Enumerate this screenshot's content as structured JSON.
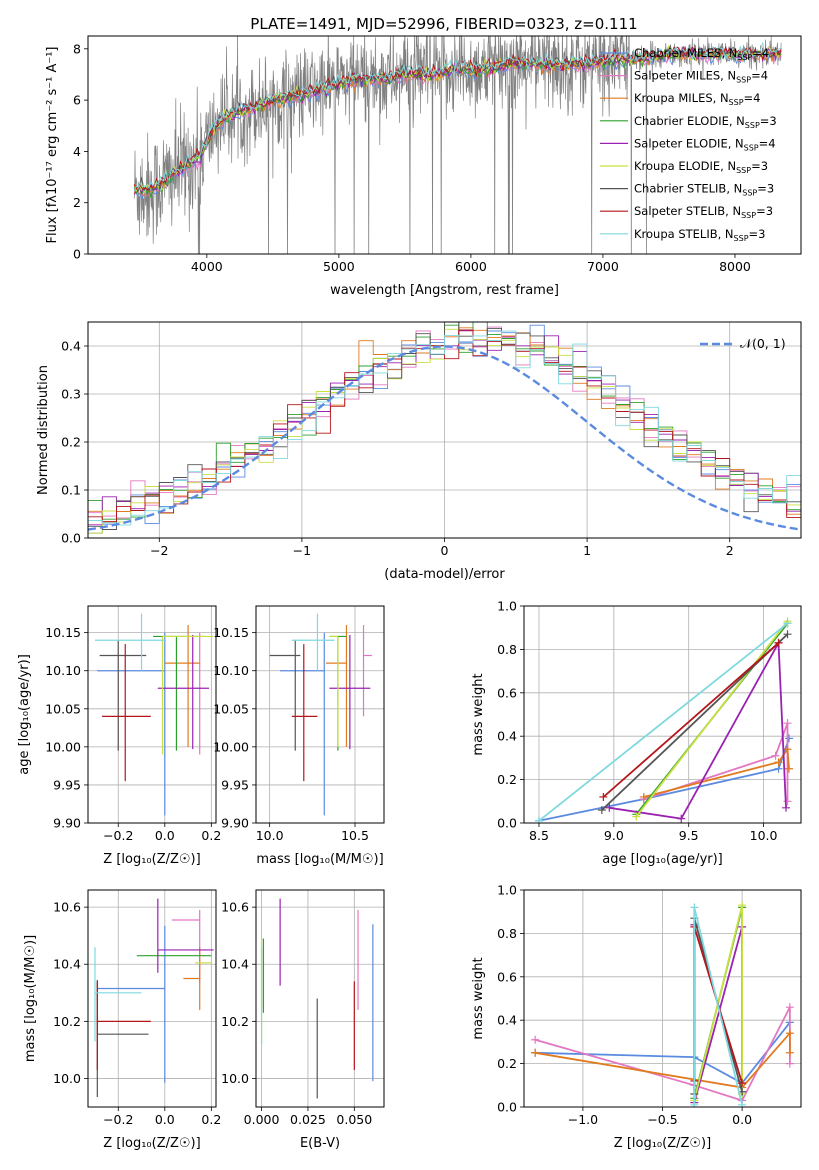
{
  "chart_data": [
    {
      "id": "spectrum",
      "type": "line",
      "title": "PLATE=1491, MJD=52996, FIBERID=0323, z=0.111",
      "xlabel": "wavelength [Angstrom, rest frame]",
      "ylabel": "Flux [fλ10⁻¹⁷ erg cm⁻² s⁻¹ A⁻¹]",
      "xlim": [
        3100,
        8500
      ],
      "ylim": [
        0,
        8.5
      ],
      "xticks": [
        "4000",
        "5000",
        "6000",
        "7000",
        "8000"
      ],
      "yticks": [
        "0",
        "2",
        "4",
        "6",
        "8"
      ],
      "grid": false,
      "legend_position": "right",
      "observed_data": {
        "color": "#808080",
        "x_range": [
          3450,
          8350
        ]
      },
      "continuum_x": [
        3450,
        3550,
        3650,
        3800,
        3950,
        4050,
        4150,
        4300,
        4500,
        4700,
        4900,
        5100,
        5300,
        5500,
        5700,
        5900,
        6100,
        6300,
        6500,
        6700,
        6900,
        7100,
        7300,
        7500,
        7700,
        7900,
        8100,
        8300
      ],
      "continuum_y": [
        2.5,
        2.5,
        2.7,
        3.3,
        3.8,
        4.9,
        5.4,
        5.6,
        6.0,
        6.2,
        6.5,
        6.8,
        6.8,
        7.0,
        7.0,
        7.2,
        7.2,
        7.4,
        7.4,
        7.4,
        7.4,
        7.6,
        7.6,
        7.8,
        7.8,
        7.8,
        7.8,
        7.8
      ],
      "series": [
        {
          "legend": "Chabrier MILES, N",
          "sub": "SSP",
          "suffix": "=4",
          "color": "#5b8be0"
        },
        {
          "legend": "Salpeter MILES, N",
          "sub": "SSP",
          "suffix": "=4",
          "color": "#e377c2"
        },
        {
          "legend": "Kroupa MILES, N",
          "sub": "SSP",
          "suffix": "=4",
          "color": "#e07b20"
        },
        {
          "legend": "Chabrier ELODIE, N",
          "sub": "SSP",
          "suffix": "=3",
          "color": "#2ca02c"
        },
        {
          "legend": "Salpeter ELODIE, N",
          "sub": "SSP",
          "suffix": "=4",
          "color": "#9b22b0"
        },
        {
          "legend": "Kroupa ELODIE, N",
          "sub": "SSP",
          "suffix": "=3",
          "color": "#c9e042"
        },
        {
          "legend": "Chabrier STELIB, N",
          "sub": "SSP",
          "suffix": "=3",
          "color": "#555555"
        },
        {
          "legend": "Salpeter STELIB, N",
          "sub": "SSP",
          "suffix": "=3",
          "color": "#b5161c"
        },
        {
          "legend": "Kroupa STELIB, N",
          "sub": "SSP",
          "suffix": "=3",
          "color": "#7fd9df"
        }
      ]
    },
    {
      "id": "residuals",
      "type": "line",
      "xlabel": "(data-model)/error",
      "ylabel": "Normed distribution",
      "xlim": [
        -2.5,
        2.5
      ],
      "ylim": [
        0,
        0.45
      ],
      "xticks": [
        "−2",
        "−1",
        "0",
        "1",
        "2"
      ],
      "yticks": [
        "0.0",
        "0.1",
        "0.2",
        "0.3",
        "0.4"
      ],
      "grid": true,
      "legend_position": "top-right",
      "gaussian": {
        "label": "𝒩(0, 1)",
        "mean": 0,
        "sigma": 1,
        "color": "#5b8be0"
      },
      "bin_width": 0.1,
      "bin_start": -2.5,
      "bin_count": 50
    },
    {
      "id": "age_vs_Z",
      "type": "scatter",
      "xlabel": "Z [log₁₀(Z/Z☉)]",
      "ylabel": "age [log₁₀(age/yr)]",
      "xlim": [
        -0.33,
        0.22
      ],
      "ylim": [
        9.9,
        10.185
      ],
      "xticks": [
        "−0.2",
        "0.0",
        "0.2"
      ],
      "yticks": [
        "9.90",
        "9.95",
        "10.00",
        "10.05",
        "10.10",
        "10.15"
      ],
      "grid": true,
      "points": [
        {
          "x": 0.0,
          "y": 10.1,
          "xerr": [
            0.29,
            0.0
          ],
          "yerr": [
            0.19,
            0.05
          ],
          "color": "#5b8be0"
        },
        {
          "x": 0.15,
          "y": 10.09,
          "xerr": [
            0.0,
            0.0
          ],
          "yerr": [
            0.1,
            0.06
          ],
          "color": "#e377c2"
        },
        {
          "x": 0.1,
          "y": 10.11,
          "xerr": [
            0.1,
            0.05
          ],
          "yerr": [
            0.11,
            0.05
          ],
          "color": "#e07b20"
        },
        {
          "x": 0.05,
          "y": 10.145,
          "xerr": [
            0.1,
            0.12
          ],
          "yerr": [
            0.15,
            0.0
          ],
          "color": "#2ca02c"
        },
        {
          "x": 0.12,
          "y": 10.077,
          "xerr": [
            0.15,
            0.07
          ],
          "yerr": [
            0.08,
            0.07
          ],
          "color": "#9b22b0"
        },
        {
          "x": -0.01,
          "y": 10.145,
          "xerr": [
            0.0,
            0.22
          ],
          "yerr": [
            0.155,
            0.0
          ],
          "color": "#c9e042"
        },
        {
          "x": -0.2,
          "y": 10.12,
          "xerr": [
            0.08,
            0.12
          ],
          "yerr": [
            0.125,
            0.02
          ],
          "color": "#555555"
        },
        {
          "x": -0.17,
          "y": 10.04,
          "xerr": [
            0.1,
            0.11
          ],
          "yerr": [
            0.085,
            0.095
          ],
          "color": "#b5161c"
        },
        {
          "x": -0.1,
          "y": 10.14,
          "xerr": [
            0.2,
            0.1
          ],
          "yerr": [
            0.04,
            0.035
          ],
          "color": "#7fd9df"
        }
      ]
    },
    {
      "id": "age_vs_mass",
      "type": "scatter",
      "xlabel": "mass [log₁₀(M/M☉)]",
      "ylabel": "",
      "xlim": [
        9.92,
        10.67
      ],
      "ylim": [
        9.9,
        10.185
      ],
      "xticks": [
        "10.0",
        "10.5"
      ],
      "yticks": [
        "9.90",
        "9.95",
        "10.00",
        "10.05",
        "10.10",
        "10.15"
      ],
      "grid": true,
      "points": [
        {
          "x": 10.32,
          "y": 10.1,
          "xerr": [
            0.26,
            0.0
          ],
          "yerr": [
            0.19,
            0.05
          ],
          "color": "#5b8be0"
        },
        {
          "x": 10.55,
          "y": 10.12,
          "xerr": [
            0.0,
            0.05
          ],
          "yerr": [
            0.08,
            0.04
          ],
          "color": "#e377c2"
        },
        {
          "x": 10.45,
          "y": 10.11,
          "xerr": [
            0.12,
            0.0
          ],
          "yerr": [
            0.11,
            0.05
          ],
          "color": "#e07b20"
        },
        {
          "x": 10.4,
          "y": 10.145,
          "xerr": [
            0.05,
            0.05
          ],
          "yerr": [
            0.15,
            0.0
          ],
          "color": "#2ca02c"
        },
        {
          "x": 10.47,
          "y": 10.077,
          "xerr": [
            0.12,
            0.12
          ],
          "yerr": [
            0.08,
            0.07
          ],
          "color": "#9b22b0"
        },
        {
          "x": 10.4,
          "y": 10.145,
          "xerr": [
            0.05,
            0.0
          ],
          "yerr": [
            0.145,
            0.0
          ],
          "color": "#c9e042"
        },
        {
          "x": 10.15,
          "y": 10.12,
          "xerr": [
            0.15,
            0.03
          ],
          "yerr": [
            0.125,
            0.02
          ],
          "color": "#555555"
        },
        {
          "x": 10.2,
          "y": 10.04,
          "xerr": [
            0.07,
            0.08
          ],
          "yerr": [
            0.085,
            0.095
          ],
          "color": "#b5161c"
        },
        {
          "x": 10.28,
          "y": 10.14,
          "xerr": [
            0.15,
            0.1
          ],
          "yerr": [
            0.04,
            0.035
          ],
          "color": "#7fd9df"
        }
      ]
    },
    {
      "id": "weight_vs_age",
      "type": "line",
      "xlabel": "age [log₁₀(age/yr)]",
      "ylabel": "mass weight",
      "xlim": [
        8.4,
        10.25
      ],
      "ylim": [
        0,
        1.0
      ],
      "xticks": [
        "8.5",
        "9.0",
        "9.5",
        "10.0"
      ],
      "yticks": [
        "0.0",
        "0.2",
        "0.4",
        "0.6",
        "0.8",
        "1.0"
      ],
      "grid": true,
      "series": [
        {
          "color": "#5b8be0",
          "x": [
            8.5,
            9.2,
            10.1,
            10.17
          ],
          "y": [
            0.01,
            0.11,
            0.25,
            0.39
          ]
        },
        {
          "color": "#e377c2",
          "x": [
            9.2,
            10.08,
            10.16,
            10.16
          ],
          "y": [
            0.11,
            0.31,
            0.46,
            0.1
          ]
        },
        {
          "color": "#e07b20",
          "x": [
            9.2,
            10.1,
            10.16,
            10.17
          ],
          "y": [
            0.12,
            0.28,
            0.34,
            0.25
          ]
        },
        {
          "color": "#2ca02c",
          "x": [
            9.15,
            10.16
          ],
          "y": [
            0.04,
            0.92
          ]
        },
        {
          "color": "#9b22b0",
          "x": [
            8.97,
            9.45,
            10.1,
            10.15
          ],
          "y": [
            0.07,
            0.02,
            0.83,
            0.07
          ]
        },
        {
          "color": "#c9e042",
          "x": [
            9.15,
            10.16
          ],
          "y": [
            0.03,
            0.93
          ]
        },
        {
          "color": "#555555",
          "x": [
            8.92,
            10.16
          ],
          "y": [
            0.06,
            0.87
          ]
        },
        {
          "color": "#b5161c",
          "x": [
            8.93,
            10.1
          ],
          "y": [
            0.12,
            0.83
          ]
        },
        {
          "color": "#7fd9df",
          "x": [
            8.5,
            10.16
          ],
          "y": [
            0.01,
            0.92
          ]
        }
      ]
    },
    {
      "id": "mass_vs_Z",
      "type": "scatter",
      "xlabel": "Z [log₁₀(Z/Z☉)]",
      "ylabel": "mass [log₁₀(M/M☉)]",
      "xlim": [
        -0.33,
        0.22
      ],
      "ylim": [
        9.9,
        10.66
      ],
      "xticks": [
        "−0.2",
        "0.0",
        "0.2"
      ],
      "yticks": [
        "10.0",
        "10.2",
        "10.4",
        "10.6"
      ],
      "grid": true,
      "points": [
        {
          "x": 0.0,
          "y": 10.315,
          "xerr": [
            0.29,
            0.0
          ],
          "yerr": [
            0.33,
            0.22
          ],
          "color": "#5b8be0"
        },
        {
          "x": 0.15,
          "y": 10.555,
          "xerr": [
            0.12,
            0.0
          ],
          "yerr": [
            0.22,
            0.035
          ],
          "color": "#e377c2"
        },
        {
          "x": 0.15,
          "y": 10.35,
          "xerr": [
            0.07,
            0.0
          ],
          "yerr": [
            0.11,
            0.11
          ],
          "color": "#e07b20"
        },
        {
          "x": 0.2,
          "y": 10.43,
          "xerr": [
            0.32,
            0.0
          ],
          "yerr": [
            0.0,
            0.0
          ],
          "color": "#2ca02c"
        },
        {
          "x": -0.03,
          "y": 10.45,
          "xerr": [
            0.0,
            0.24
          ],
          "yerr": [
            0.08,
            0.18
          ],
          "color": "#9b22b0"
        },
        {
          "x": 0.13,
          "y": 10.405,
          "xerr": [
            0.0,
            0.07
          ],
          "yerr": [
            0.0,
            0.0
          ],
          "color": "#c9e042"
        },
        {
          "x": -0.29,
          "y": 10.155,
          "xerr": [
            0.0,
            0.22
          ],
          "yerr": [
            0.22,
            0.19
          ],
          "color": "#555555"
        },
        {
          "x": -0.29,
          "y": 10.2,
          "xerr": [
            0.0,
            0.23
          ],
          "yerr": [
            0.17,
            0.14
          ],
          "color": "#b5161c"
        },
        {
          "x": -0.3,
          "y": 10.3,
          "xerr": [
            0.0,
            0.2
          ],
          "yerr": [
            0.17,
            0.16
          ],
          "color": "#7fd9df"
        }
      ]
    },
    {
      "id": "mass_vs_EBV",
      "type": "scatter",
      "xlabel": "E(B-V)",
      "ylabel": "",
      "xlim": [
        -0.003,
        0.066
      ],
      "ylim": [
        9.9,
        10.66
      ],
      "xticks": [
        "0.000",
        "0.025",
        "0.050"
      ],
      "yticks": [
        "10.0",
        "10.2",
        "10.4",
        "10.6"
      ],
      "grid": true,
      "points": [
        {
          "x": 0.06,
          "y": 10.27,
          "yerr": [
            0.28,
            0.27
          ],
          "color": "#5b8be0"
        },
        {
          "x": 0.052,
          "y": 10.42,
          "yerr": [
            0.18,
            0.17
          ],
          "color": "#e377c2"
        },
        {
          "x": 0.001,
          "y": 10.41,
          "yerr": [
            0.18,
            0.08
          ],
          "color": "#2ca02c"
        },
        {
          "x": 0.01,
          "y": 10.475,
          "yerr": [
            0.15,
            0.155
          ],
          "color": "#9b22b0"
        },
        {
          "x": 0.0,
          "y": 10.32,
          "yerr": [
            0.2,
            0.17
          ],
          "color": "#c9e042"
        },
        {
          "x": 0.03,
          "y": 10.1,
          "yerr": [
            0.17,
            0.18
          ],
          "color": "#555555"
        },
        {
          "x": 0.05,
          "y": 10.18,
          "yerr": [
            0.15,
            0.16
          ],
          "color": "#b5161c"
        },
        {
          "x": 0.0,
          "y": 10.28,
          "yerr": [
            0.16,
            0.18
          ],
          "color": "#7fd9df"
        }
      ]
    },
    {
      "id": "weight_vs_Z",
      "type": "line",
      "xlabel": "Z [log₁₀(Z/Z☉)]",
      "ylabel": "mass weight",
      "xlim": [
        -1.37,
        0.37
      ],
      "ylim": [
        0,
        1.0
      ],
      "xticks": [
        "−1.0",
        "−0.5",
        "0.0"
      ],
      "yticks": [
        "0.0",
        "0.2",
        "0.4",
        "0.6",
        "0.8",
        "1.0"
      ],
      "grid": true,
      "series": [
        {
          "color": "#5b8be0",
          "x": [
            -1.3,
            -0.3,
            0.0,
            0.3
          ],
          "y": [
            0.25,
            0.23,
            0.11,
            0.39
          ]
        },
        {
          "color": "#e377c2",
          "x": [
            -1.3,
            -0.3,
            0.0,
            0.3,
            0.3
          ],
          "y": [
            0.31,
            0.1,
            0.03,
            0.46,
            0.2
          ]
        },
        {
          "color": "#e07b20",
          "x": [
            -1.3,
            0.0,
            0.3,
            0.3
          ],
          "y": [
            0.25,
            0.09,
            0.34,
            0.25
          ]
        },
        {
          "color": "#2ca02c",
          "x": [
            -0.3,
            0.0,
            0.0
          ],
          "y": [
            0.04,
            0.92,
            0.06
          ]
        },
        {
          "color": "#9b22b0",
          "x": [
            0.0,
            0.0,
            -0.3,
            -0.3
          ],
          "y": [
            0.07,
            0.83,
            0.02,
            0.84
          ]
        },
        {
          "color": "#c9e042",
          "x": [
            -0.3,
            0.0,
            0.0
          ],
          "y": [
            0.03,
            0.93,
            0.06
          ]
        },
        {
          "color": "#555555",
          "x": [
            -0.3,
            -0.3,
            0.0
          ],
          "y": [
            0.06,
            0.87,
            0.07
          ]
        },
        {
          "color": "#b5161c",
          "x": [
            -0.3,
            -0.3,
            0.0
          ],
          "y": [
            0.12,
            0.83,
            0.11
          ]
        },
        {
          "color": "#7fd9df",
          "x": [
            -0.3,
            -0.3,
            0.0
          ],
          "y": [
            0.01,
            0.92,
            0.01
          ]
        }
      ]
    }
  ]
}
